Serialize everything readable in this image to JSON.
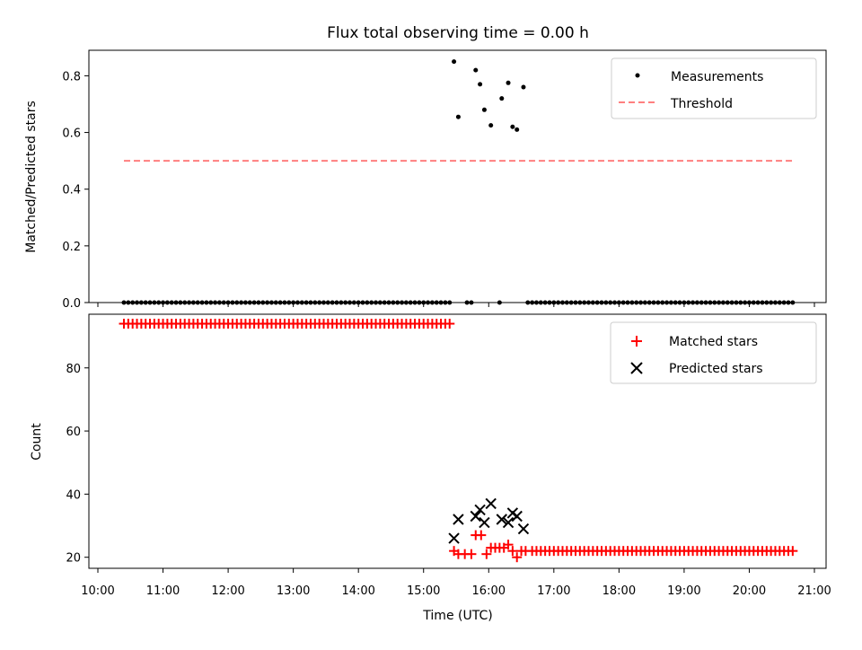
{
  "chart_data": {
    "type": "scatter",
    "title": "Flux total observing time = 0.00 h",
    "xlabel": "Time (UTC)",
    "x_ticks": [
      "10:00",
      "11:00",
      "12:00",
      "13:00",
      "14:00",
      "15:00",
      "16:00",
      "17:00",
      "18:00",
      "19:00",
      "20:00",
      "21:00"
    ],
    "panels": [
      {
        "ylabel": "Matched/Predicted stars",
        "ylim": [
          0,
          0.89
        ],
        "y_ticks": [
          "0.0",
          "0.2",
          "0.4",
          "0.6",
          "0.8"
        ],
        "y_tick_values": [
          0,
          0.2,
          0.4,
          0.6,
          0.8
        ],
        "legend_position": "top-right",
        "legend": [
          "Measurements",
          "Threshold"
        ],
        "series": [
          {
            "name": "Measurements",
            "marker": "dot",
            "color": "#000000",
            "zero_runs": [
              {
                "start": "10:24",
                "end": "15:24",
                "step_min": 4
              },
              {
                "start": "15:40",
                "end": "15:44",
                "step_min": 4
              },
              {
                "start": "16:10",
                "end": "16:10",
                "step_min": 4
              },
              {
                "start": "16:36",
                "end": "20:40",
                "step_min": 4
              }
            ],
            "points": [
              {
                "x": "15:28",
                "y": 0.85
              },
              {
                "x": "15:32",
                "y": 0.655
              },
              {
                "x": "15:48",
                "y": 0.82
              },
              {
                "x": "15:52",
                "y": 0.77
              },
              {
                "x": "15:56",
                "y": 0.68
              },
              {
                "x": "16:02",
                "y": 0.625
              },
              {
                "x": "16:12",
                "y": 0.72
              },
              {
                "x": "16:18",
                "y": 0.775
              },
              {
                "x": "16:22",
                "y": 0.62
              },
              {
                "x": "16:26",
                "y": 0.61
              },
              {
                "x": "16:32",
                "y": 0.76
              }
            ]
          },
          {
            "name": "Threshold",
            "style": "dashed",
            "color": "#ff7f7f",
            "x": [
              "10:24",
              "20:40"
            ],
            "y": [
              0.5,
              0.5
            ]
          }
        ]
      },
      {
        "ylabel": "Count",
        "ylim": [
          16.5,
          97
        ],
        "y_ticks": [
          "20",
          "40",
          "60",
          "80"
        ],
        "y_tick_values": [
          20,
          40,
          60,
          80
        ],
        "legend_position": "top-right",
        "legend": [
          "Matched stars",
          "Predicted stars"
        ],
        "series": [
          {
            "name": "Matched stars",
            "marker": "plus",
            "color": "#ff0000",
            "runs": [
              {
                "start": "10:24",
                "end": "15:24",
                "step_min": 4,
                "y": 94
              },
              {
                "start": "16:40",
                "end": "20:40",
                "step_min": 4,
                "y": 22
              }
            ],
            "points": [
              {
                "x": "15:28",
                "y": 22
              },
              {
                "x": "15:32",
                "y": 21
              },
              {
                "x": "15:38",
                "y": 21
              },
              {
                "x": "15:44",
                "y": 21
              },
              {
                "x": "15:48",
                "y": 27
              },
              {
                "x": "15:53",
                "y": 27
              },
              {
                "x": "15:58",
                "y": 21
              },
              {
                "x": "16:02",
                "y": 23
              },
              {
                "x": "16:06",
                "y": 23
              },
              {
                "x": "16:10",
                "y": 23
              },
              {
                "x": "16:14",
                "y": 23
              },
              {
                "x": "16:18",
                "y": 24
              },
              {
                "x": "16:22",
                "y": 22
              },
              {
                "x": "16:26",
                "y": 20
              },
              {
                "x": "16:30",
                "y": 22
              },
              {
                "x": "16:34",
                "y": 22
              }
            ]
          },
          {
            "name": "Predicted stars",
            "marker": "x",
            "color": "#000000",
            "points": [
              {
                "x": "15:28",
                "y": 26
              },
              {
                "x": "15:32",
                "y": 32
              },
              {
                "x": "15:48",
                "y": 33
              },
              {
                "x": "15:52",
                "y": 35
              },
              {
                "x": "15:56",
                "y": 31
              },
              {
                "x": "16:02",
                "y": 37
              },
              {
                "x": "16:12",
                "y": 32
              },
              {
                "x": "16:18",
                "y": 31
              },
              {
                "x": "16:22",
                "y": 34
              },
              {
                "x": "16:26",
                "y": 33
              },
              {
                "x": "16:32",
                "y": 29
              }
            ]
          }
        ]
      }
    ]
  }
}
